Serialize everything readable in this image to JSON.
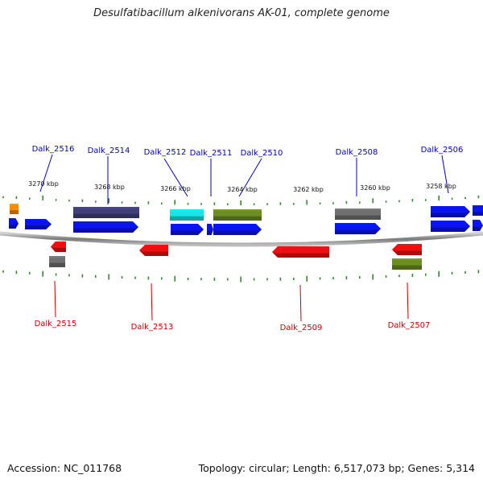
{
  "title": "Desulfatibacillum alkenivorans AK-01, complete genome",
  "footer": {
    "accession": "Accession: NC_011768",
    "summary": "Topology: circular; Length: 6,517,073 bp; Genes: 5,314"
  },
  "colors": {
    "backbone": "#888888",
    "tick": "#2e8b2e",
    "forward_label": "#0000cc",
    "reverse_label": "#cc0000",
    "blue": "#0a14f0",
    "red": "#ee1010",
    "dark_slate": "#40407a",
    "cyan": "#18e6e6",
    "olive": "#6b8e23",
    "gray": "#707070",
    "orange": "#ff8c00"
  },
  "scale_labels": [
    "3270 kbp",
    "3268 kbp",
    "3266 kbp",
    "3264 kbp",
    "3262 kbp",
    "3260 kbp",
    "3258 kbp"
  ],
  "gene_labels_forward": [
    "Dalk_2516",
    "Dalk_2514",
    "Dalk_2512",
    "Dalk_2511",
    "Dalk_2510",
    "Dalk_2508",
    "Dalk_2506"
  ],
  "gene_labels_reverse": [
    "Dalk_2515",
    "Dalk_2513",
    "Dalk_2509",
    "Dalk_2507"
  ]
}
